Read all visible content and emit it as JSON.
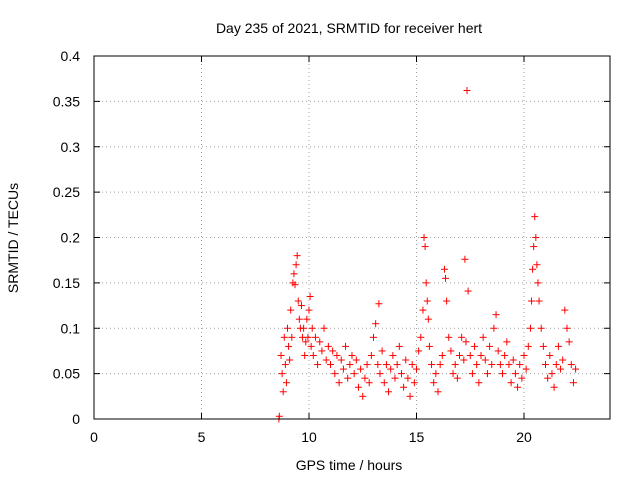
{
  "chart_data": {
    "type": "scatter",
    "title": "Day 235 of 2021, SRMTID for receiver hert",
    "xlabel": "GPS time / hours",
    "ylabel": "SRMTID / TECUs",
    "xlim": [
      0,
      24
    ],
    "ylim": [
      0,
      0.4
    ],
    "x_ticks": [
      0,
      5,
      10,
      15,
      20
    ],
    "x_tick_labels": [
      "0",
      "5",
      "10",
      "15",
      "20"
    ],
    "y_ticks": [
      0,
      0.05,
      0.1,
      0.15,
      0.2,
      0.25,
      0.3,
      0.35,
      0.4
    ],
    "y_tick_labels": [
      "0",
      "0.05",
      "0.1",
      "0.15",
      "0.2",
      "0.25",
      "0.3",
      "0.35",
      "0.4"
    ],
    "grid": true,
    "marker": "plus",
    "color": "#ff0000",
    "series": [
      {
        "points": [
          [
            8.6,
            0.0
          ],
          [
            8.62,
            0.003
          ],
          [
            8.7,
            0.07
          ],
          [
            8.75,
            0.05
          ],
          [
            8.8,
            0.03
          ],
          [
            8.85,
            0.09
          ],
          [
            8.9,
            0.06
          ],
          [
            8.95,
            0.04
          ],
          [
            9.0,
            0.1
          ],
          [
            9.05,
            0.08
          ],
          [
            9.1,
            0.065
          ],
          [
            9.15,
            0.12
          ],
          [
            9.2,
            0.09
          ],
          [
            9.25,
            0.15
          ],
          [
            9.3,
            0.16
          ],
          [
            9.35,
            0.148
          ],
          [
            9.4,
            0.17
          ],
          [
            9.45,
            0.18
          ],
          [
            9.5,
            0.13
          ],
          [
            9.55,
            0.11
          ],
          [
            9.6,
            0.1
          ],
          [
            9.65,
            0.125
          ],
          [
            9.7,
            0.09
          ],
          [
            9.75,
            0.1
          ],
          [
            9.8,
            0.07
          ],
          [
            9.85,
            0.085
          ],
          [
            9.9,
            0.11
          ],
          [
            9.95,
            0.09
          ],
          [
            10.0,
            0.12
          ],
          [
            10.05,
            0.135
          ],
          [
            10.1,
            0.08
          ],
          [
            10.15,
            0.1
          ],
          [
            10.2,
            0.07
          ],
          [
            10.3,
            0.09
          ],
          [
            10.4,
            0.06
          ],
          [
            10.5,
            0.085
          ],
          [
            10.6,
            0.075
          ],
          [
            10.7,
            0.1
          ],
          [
            10.8,
            0.065
          ],
          [
            10.9,
            0.08
          ],
          [
            11.0,
            0.06
          ],
          [
            11.1,
            0.075
          ],
          [
            11.2,
            0.05
          ],
          [
            11.3,
            0.07
          ],
          [
            11.4,
            0.04
          ],
          [
            11.5,
            0.065
          ],
          [
            11.6,
            0.055
          ],
          [
            11.7,
            0.08
          ],
          [
            11.8,
            0.045
          ],
          [
            11.9,
            0.06
          ],
          [
            12.0,
            0.07
          ],
          [
            12.1,
            0.05
          ],
          [
            12.2,
            0.065
          ],
          [
            12.3,
            0.035
          ],
          [
            12.4,
            0.055
          ],
          [
            12.5,
            0.025
          ],
          [
            12.6,
            0.045
          ],
          [
            12.7,
            0.06
          ],
          [
            12.8,
            0.04
          ],
          [
            12.9,
            0.07
          ],
          [
            13.0,
            0.09
          ],
          [
            13.1,
            0.105
          ],
          [
            13.2,
            0.06
          ],
          [
            13.25,
            0.127
          ],
          [
            13.3,
            0.05
          ],
          [
            13.4,
            0.075
          ],
          [
            13.5,
            0.04
          ],
          [
            13.6,
            0.06
          ],
          [
            13.7,
            0.03
          ],
          [
            13.8,
            0.055
          ],
          [
            13.9,
            0.07
          ],
          [
            14.0,
            0.045
          ],
          [
            14.1,
            0.06
          ],
          [
            14.2,
            0.08
          ],
          [
            14.3,
            0.05
          ],
          [
            14.4,
            0.035
          ],
          [
            14.5,
            0.065
          ],
          [
            14.6,
            0.045
          ],
          [
            14.7,
            0.025
          ],
          [
            14.8,
            0.06
          ],
          [
            14.9,
            0.04
          ],
          [
            15.0,
            0.055
          ],
          [
            15.1,
            0.075
          ],
          [
            15.2,
            0.09
          ],
          [
            15.3,
            0.12
          ],
          [
            15.35,
            0.2
          ],
          [
            15.4,
            0.19
          ],
          [
            15.45,
            0.15
          ],
          [
            15.5,
            0.13
          ],
          [
            15.55,
            0.11
          ],
          [
            15.6,
            0.08
          ],
          [
            15.7,
            0.06
          ],
          [
            15.8,
            0.04
          ],
          [
            15.9,
            0.05
          ],
          [
            16.0,
            0.03
          ],
          [
            16.1,
            0.06
          ],
          [
            16.2,
            0.07
          ],
          [
            16.3,
            0.165
          ],
          [
            16.35,
            0.155
          ],
          [
            16.4,
            0.13
          ],
          [
            16.5,
            0.09
          ],
          [
            16.6,
            0.075
          ],
          [
            16.7,
            0.05
          ],
          [
            16.8,
            0.06
          ],
          [
            16.9,
            0.045
          ],
          [
            17.0,
            0.07
          ],
          [
            17.1,
            0.09
          ],
          [
            17.2,
            0.065
          ],
          [
            17.25,
            0.176
          ],
          [
            17.3,
            0.085
          ],
          [
            17.35,
            0.362
          ],
          [
            17.4,
            0.141
          ],
          [
            17.5,
            0.07
          ],
          [
            17.6,
            0.05
          ],
          [
            17.7,
            0.08
          ],
          [
            17.8,
            0.06
          ],
          [
            17.9,
            0.04
          ],
          [
            18.0,
            0.07
          ],
          [
            18.1,
            0.09
          ],
          [
            18.2,
            0.065
          ],
          [
            18.3,
            0.05
          ],
          [
            18.4,
            0.08
          ],
          [
            18.5,
            0.06
          ],
          [
            18.6,
            0.1
          ],
          [
            18.7,
            0.115
          ],
          [
            18.8,
            0.075
          ],
          [
            18.9,
            0.06
          ],
          [
            19.0,
            0.05
          ],
          [
            19.1,
            0.07
          ],
          [
            19.2,
            0.085
          ],
          [
            19.3,
            0.06
          ],
          [
            19.4,
            0.04
          ],
          [
            19.5,
            0.065
          ],
          [
            19.6,
            0.05
          ],
          [
            19.7,
            0.035
          ],
          [
            19.8,
            0.06
          ],
          [
            19.9,
            0.045
          ],
          [
            20.0,
            0.07
          ],
          [
            20.1,
            0.055
          ],
          [
            20.2,
            0.08
          ],
          [
            20.3,
            0.1
          ],
          [
            20.35,
            0.13
          ],
          [
            20.4,
            0.165
          ],
          [
            20.45,
            0.19
          ],
          [
            20.5,
            0.223
          ],
          [
            20.55,
            0.2
          ],
          [
            20.6,
            0.17
          ],
          [
            20.65,
            0.15
          ],
          [
            20.7,
            0.13
          ],
          [
            20.8,
            0.1
          ],
          [
            20.9,
            0.08
          ],
          [
            21.0,
            0.06
          ],
          [
            21.1,
            0.045
          ],
          [
            21.2,
            0.07
          ],
          [
            21.3,
            0.05
          ],
          [
            21.4,
            0.035
          ],
          [
            21.5,
            0.06
          ],
          [
            21.6,
            0.08
          ],
          [
            21.7,
            0.055
          ],
          [
            21.8,
            0.065
          ],
          [
            21.9,
            0.12
          ],
          [
            22.0,
            0.1
          ],
          [
            22.1,
            0.085
          ],
          [
            22.2,
            0.06
          ],
          [
            22.3,
            0.04
          ],
          [
            22.4,
            0.055
          ]
        ]
      }
    ]
  }
}
